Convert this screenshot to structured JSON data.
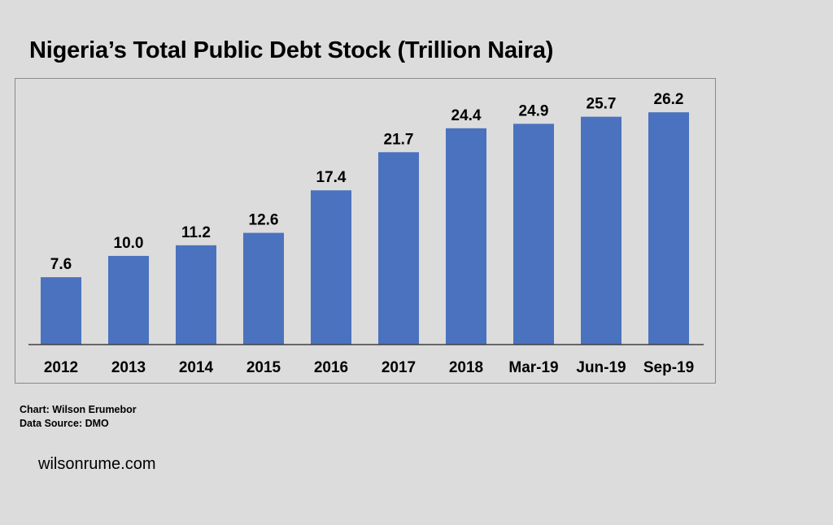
{
  "title": "Nigeria’s Total Public Debt Stock (Trillion Naira)",
  "credits": {
    "chart": "Chart: Wilson Erumebor",
    "source": "Data Source: DMO"
  },
  "website": "wilsonrume.com",
  "colors": {
    "bar": "#4a72be",
    "background": "#dcdcdc"
  },
  "chart_data": {
    "type": "bar",
    "categories": [
      "2012",
      "2013",
      "2014",
      "2015",
      "2016",
      "2017",
      "2018",
      "Mar-19",
      "Jun-19",
      "Sep-19"
    ],
    "values": [
      7.6,
      10.0,
      11.2,
      12.6,
      17.4,
      21.7,
      24.4,
      24.9,
      25.7,
      26.2
    ],
    "value_labels": [
      "7.6",
      "10.0",
      "11.2",
      "12.6",
      "17.4",
      "21.7",
      "24.4",
      "24.9",
      "25.7",
      "26.2"
    ],
    "xlabel": "",
    "ylabel": "",
    "ylim": [
      0,
      28.6
    ],
    "grid": false,
    "legend": "none"
  }
}
